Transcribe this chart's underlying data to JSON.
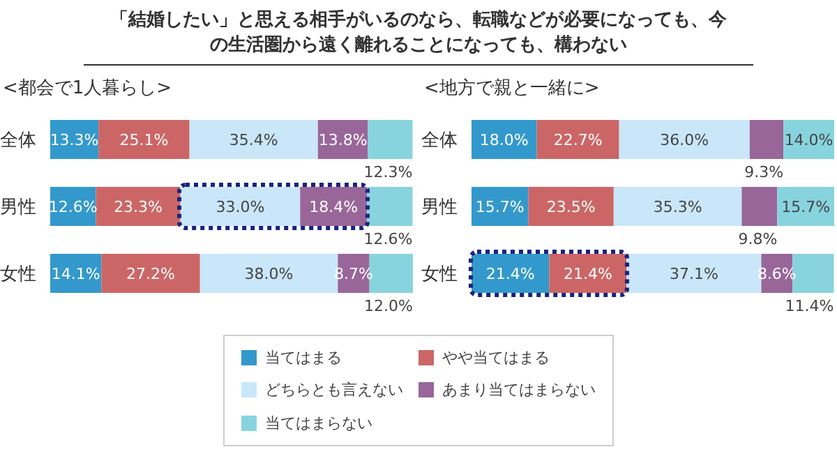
{
  "chart_data": [
    {
      "type": "bar",
      "orientation": "horizontal",
      "stacked": true,
      "legend": "bottom",
      "title": "「結婚したい」と思える相手がいるのなら、転職などが必要になっても、今の生活圏から遠く離れることになっても、構わない",
      "subtitle": "<都会で1人暮らし>",
      "categories": [
        "全体",
        "男性",
        "女性"
      ],
      "series": [
        {
          "name": "当てはまる",
          "color": "#3399cc",
          "values": [
            13.3,
            12.6,
            14.1
          ],
          "value_labels": [
            "13.3%",
            "12.6%",
            "14.1%"
          ]
        },
        {
          "name": "やや当てはまる",
          "color": "#cc6666",
          "values": [
            25.1,
            23.3,
            27.2
          ],
          "value_labels": [
            "25.1%",
            "23.3%",
            "27.2%"
          ]
        },
        {
          "name": "どちらとも言えない",
          "color": "#c9e7f9",
          "values": [
            35.4,
            33.0,
            38.0
          ],
          "value_labels": [
            "35.4%",
            "33.0%",
            "38.0%"
          ]
        },
        {
          "name": "あまり当てはまらない",
          "color": "#996699",
          "values": [
            13.8,
            18.4,
            8.7
          ],
          "value_labels": [
            "13.8%",
            "18.4%",
            "8.7%"
          ]
        },
        {
          "name": "当てはまらない",
          "color": "#88d4de",
          "values": [
            12.3,
            12.6,
            12.0
          ],
          "value_labels": [
            "12.3%",
            "12.6%",
            "12.0%"
          ]
        }
      ]
    },
    {
      "type": "bar",
      "orientation": "horizontal",
      "stacked": true,
      "subtitle": "<地方で親と一緒に>",
      "categories": [
        "全体",
        "男性",
        "女性"
      ],
      "series": [
        {
          "name": "当てはまる",
          "color": "#3399cc",
          "values": [
            18.0,
            15.7,
            21.4
          ],
          "value_labels": [
            "18.0%",
            "15.7%",
            "21.4%"
          ]
        },
        {
          "name": "やや当てはまる",
          "color": "#cc6666",
          "values": [
            22.7,
            23.5,
            21.4
          ],
          "value_labels": [
            "22.7%",
            "23.5%",
            "21.4%"
          ]
        },
        {
          "name": "どちらとも言えない",
          "color": "#c9e7f9",
          "values": [
            36.0,
            35.3,
            37.1
          ],
          "value_labels": [
            "36.0%",
            "35.3%",
            "37.1%"
          ]
        },
        {
          "name": "あまり当てはまらない",
          "color": "#996699",
          "values": [
            9.3,
            9.8,
            8.6
          ],
          "value_labels": [
            "9.3%",
            "9.8%",
            "8.6%"
          ]
        },
        {
          "name": "当てはまらない",
          "color": "#88d4de",
          "values": [
            14.0,
            15.7,
            11.4
          ],
          "value_labels": [
            "14.0%",
            "15.7%",
            "11.4%"
          ]
        }
      ]
    }
  ]
}
